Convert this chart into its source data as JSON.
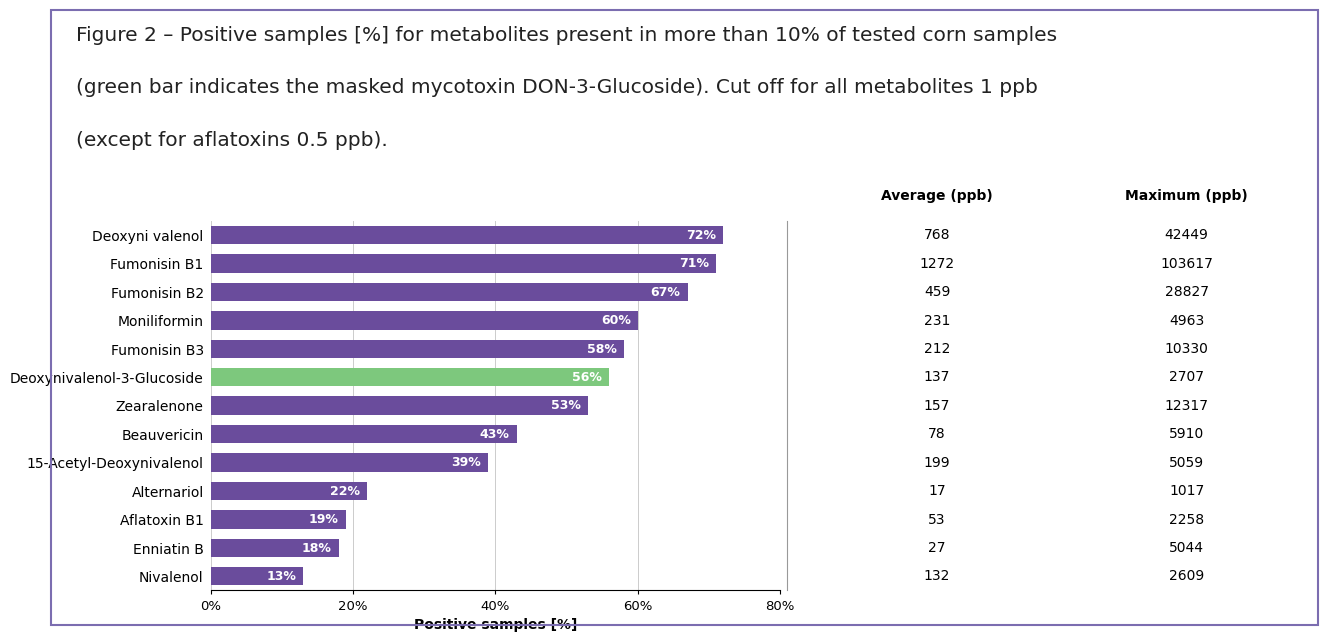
{
  "title_line1": "Figure 2 – Positive samples [%] for metabolites present in more than 10% of tested corn samples",
  "title_line2": "(green bar indicates the masked mycotoxin DON-3-Glucoside). Cut off for all metabolites 1 ppb",
  "title_line3": "(except for aflatoxins 0.5 ppb).",
  "categories": [
    "Deoxyni valenol",
    "Fumonisin B1",
    "Fumonisin B2",
    "Moniliformin",
    "Fumonisin B3",
    "Deoxynivalenol-3-Glucoside",
    "Zearalenone",
    "Beauvericin",
    "15-Acetyl-Deoxynivalenol",
    "Alternariol",
    "Aflatoxin B1",
    "Enniatin B",
    "Nivalenol"
  ],
  "values": [
    72,
    71,
    67,
    60,
    58,
    56,
    53,
    43,
    39,
    22,
    19,
    18,
    13
  ],
  "bar_colors": [
    "#6a4c9c",
    "#6a4c9c",
    "#6a4c9c",
    "#6a4c9c",
    "#6a4c9c",
    "#7dc87d",
    "#6a4c9c",
    "#6a4c9c",
    "#6a4c9c",
    "#6a4c9c",
    "#6a4c9c",
    "#6a4c9c",
    "#6a4c9c"
  ],
  "averages": [
    768,
    1272,
    459,
    231,
    212,
    137,
    157,
    78,
    199,
    17,
    53,
    27,
    132
  ],
  "maximums": [
    42449,
    103617,
    28827,
    4963,
    10330,
    2707,
    12317,
    5910,
    5059,
    1017,
    2258,
    5044,
    2609
  ],
  "xlabel": "Positive samples [%]",
  "xlim": [
    0,
    80
  ],
  "xticks": [
    0,
    20,
    40,
    60,
    80
  ],
  "xtick_labels": [
    "0%",
    "20%",
    "40%",
    "60%",
    "80%"
  ],
  "table_header_avg": "Average (ppb)",
  "table_header_max": "Maximum (ppb)",
  "bar_label_color": "#ffffff",
  "bar_color_purple": "#6a4c9c",
  "bar_color_green": "#7dc87d",
  "background_color": "#ffffff",
  "border_color": "#7b6db0",
  "title_fontsize": 14.5,
  "label_fontsize": 10,
  "tick_fontsize": 9.5,
  "bar_label_fontsize": 9,
  "table_fontsize": 10
}
